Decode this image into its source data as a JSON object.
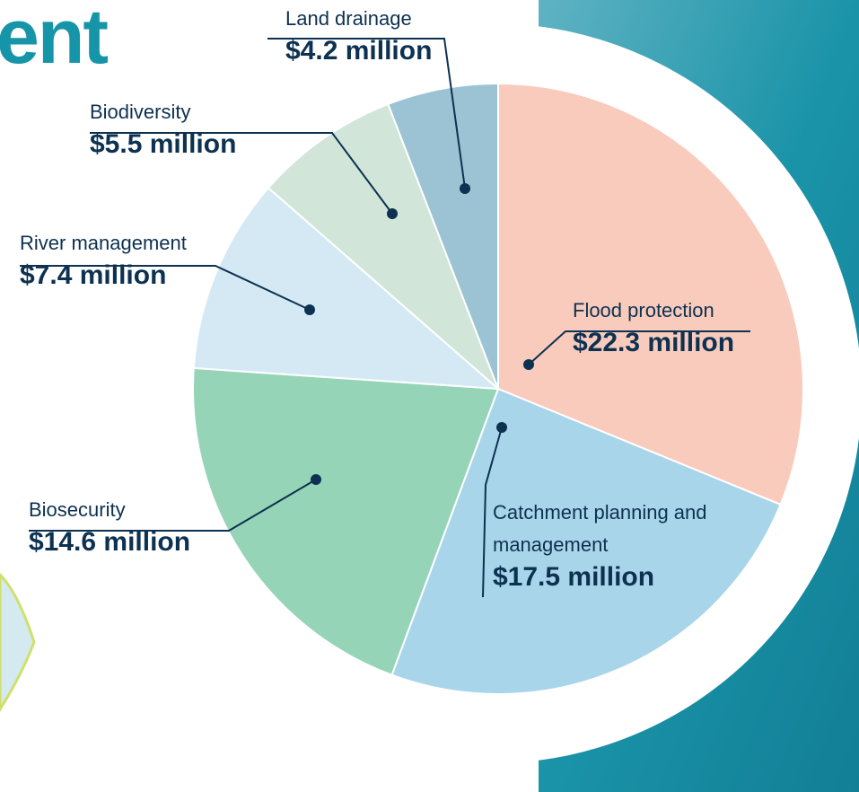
{
  "chart_data": {
    "type": "pie",
    "title": "ent",
    "categories": [
      "Flood protection",
      "Catchment planning and management",
      "Biosecurity",
      "River management",
      "Biodiversity",
      "Land drainage"
    ],
    "values": [
      22.3,
      17.5,
      14.6,
      7.4,
      5.5,
      4.2
    ],
    "value_labels": [
      "$22.3 million",
      "$17.5 million",
      "$14.6 million",
      "$7.4 million",
      "$5.5 million",
      "$4.2 million"
    ],
    "colors": [
      "#f9cbbd",
      "#a9d5ea",
      "#96d4b7",
      "#d5e9f5",
      "#d1e6d9",
      "#9cc3d3"
    ]
  }
}
